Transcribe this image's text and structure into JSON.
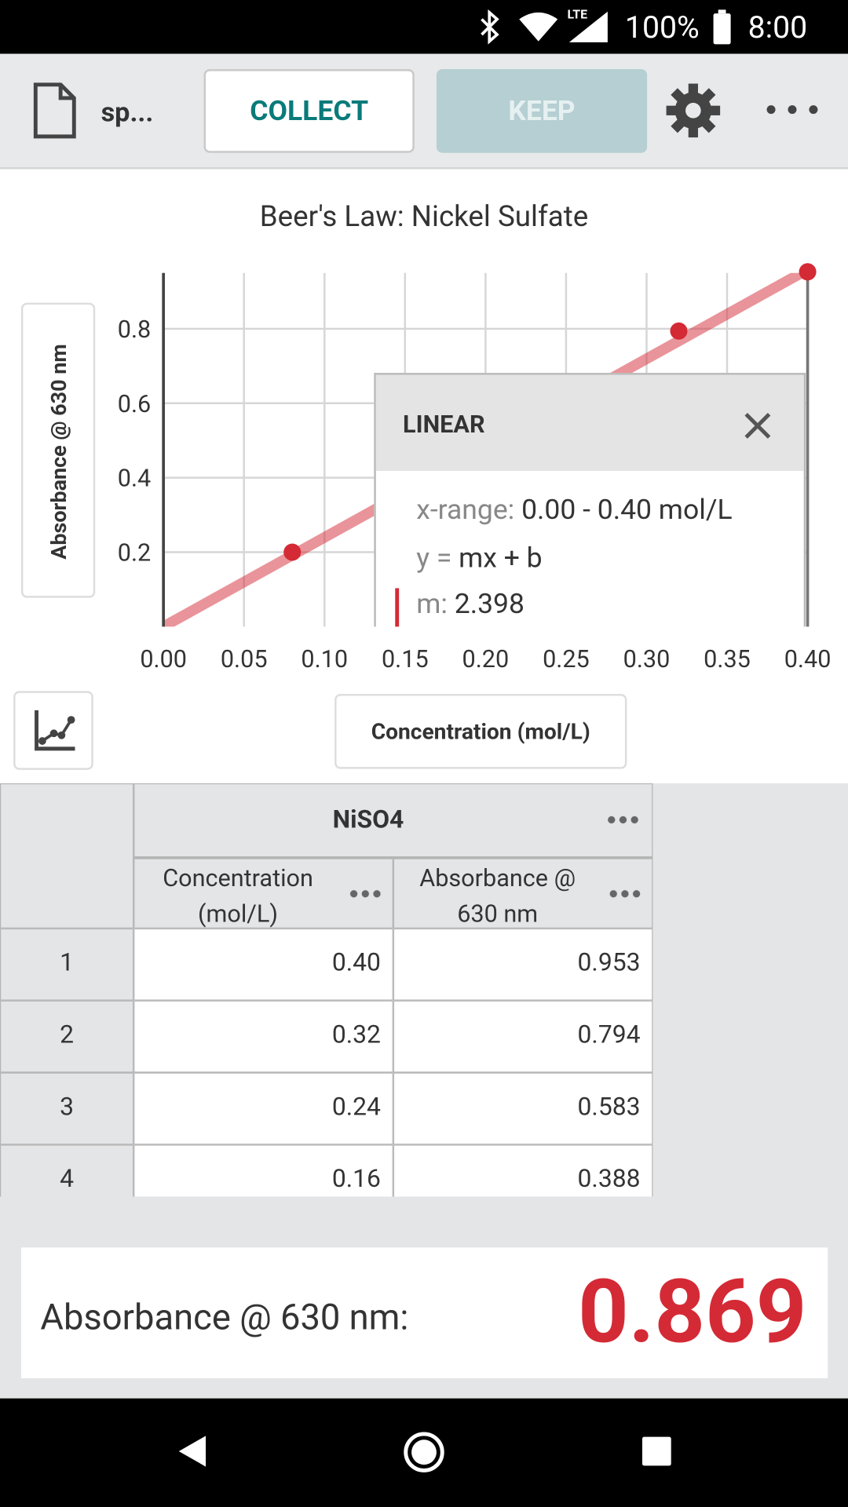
{
  "status_bar": {
    "network": "LTE",
    "battery": "100%",
    "time": "8:00"
  },
  "toolbar": {
    "file_name": "sp...",
    "collect": "COLLECT",
    "keep": "KEEP"
  },
  "graph": {
    "title": "Beer's Law: Nickel Sulfate",
    "y_label": "Absorbance @ 630 nm",
    "x_label": "Concentration (mol/L)",
    "xlim": [
      0,
      0.4
    ],
    "ylim": [
      0,
      0.95
    ],
    "xticks": [
      {
        "value": 0,
        "label": "0.00"
      },
      0.05,
      {
        "value": 0.1,
        "label": "0.10"
      },
      0.15,
      {
        "value": 0.2,
        "label": "0.20"
      },
      0.25,
      {
        "value": 0.3,
        "label": "0.30"
      },
      0.35,
      {
        "value": 0.4,
        "label": "0.40"
      }
    ],
    "yticks": [
      0.2,
      0.4,
      0.6,
      0.8
    ],
    "grid": true,
    "color": "#d42a35",
    "points": {
      "x": [
        0.08,
        0.32,
        0.4
      ],
      "y": [
        0.2,
        0.794,
        0.953
      ]
    },
    "fit": {
      "title": "LINEAR",
      "x_range_label": "x-range:",
      "x_range": "0.00 - 0.40 mol/L",
      "equation_label": "y =",
      "equation": "mx + b",
      "m_label": "m:",
      "m": 2.398
    }
  },
  "table": {
    "group": "NiSO4",
    "columns": [
      "Concentration (mol/L)",
      "Absorbance @ 630 nm"
    ],
    "rows": [
      [
        "1",
        "0.40",
        "0.953"
      ],
      [
        "2",
        "0.32",
        "0.794"
      ],
      [
        "3",
        "0.24",
        "0.583"
      ],
      [
        "4",
        "0.16",
        "0.388"
      ]
    ]
  },
  "meter": {
    "label": "Absorbance @ 630 nm:",
    "value": "0.869"
  }
}
